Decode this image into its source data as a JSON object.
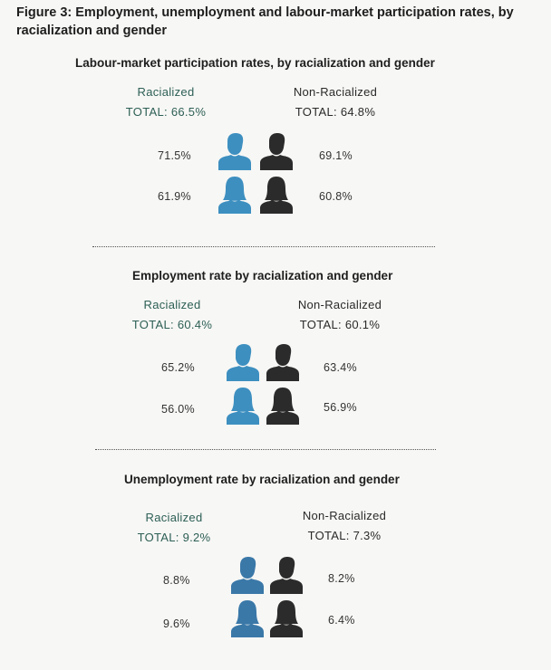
{
  "figure_title": "Figure 3: Employment, unemployment and labour-market participation rates, by racialization and gender",
  "colors": {
    "racialized": "#3d8fc0",
    "non_racialized": "#2b2b2b",
    "racialized_label": "#2d5f55"
  },
  "chart_data": [
    {
      "type": "table",
      "title": "Labour-market participation rates, by racialization and gender",
      "groups": [
        {
          "name": "Racialized",
          "total_label": "TOTAL: 66.5%",
          "total": 66.5,
          "men": "71.5%",
          "women": "61.9%"
        },
        {
          "name": "Non-Racialized",
          "total_label": "TOTAL: 64.8%",
          "total": 64.8,
          "men": "69.1%",
          "women": "60.8%"
        }
      ]
    },
    {
      "type": "table",
      "title": "Employment rate by racialization and gender",
      "groups": [
        {
          "name": "Racialized",
          "total_label": "TOTAL: 60.4%",
          "total": 60.4,
          "men": "65.2%",
          "women": "56.0%"
        },
        {
          "name": "Non-Racialized",
          "total_label": "TOTAL: 60.1%",
          "total": 60.1,
          "men": "63.4%",
          "women": "56.9%"
        }
      ]
    },
    {
      "type": "table",
      "title": "Unemployment rate by racialization and gender",
      "groups": [
        {
          "name": "Racialized",
          "total_label": "TOTAL: 9.2%",
          "total": 9.2,
          "men": "8.8%",
          "women": "9.6%"
        },
        {
          "name": "Non-Racialized",
          "total_label": "TOTAL: 7.3%",
          "total": 7.3,
          "men": "8.2%",
          "women": "6.4%"
        }
      ]
    }
  ]
}
